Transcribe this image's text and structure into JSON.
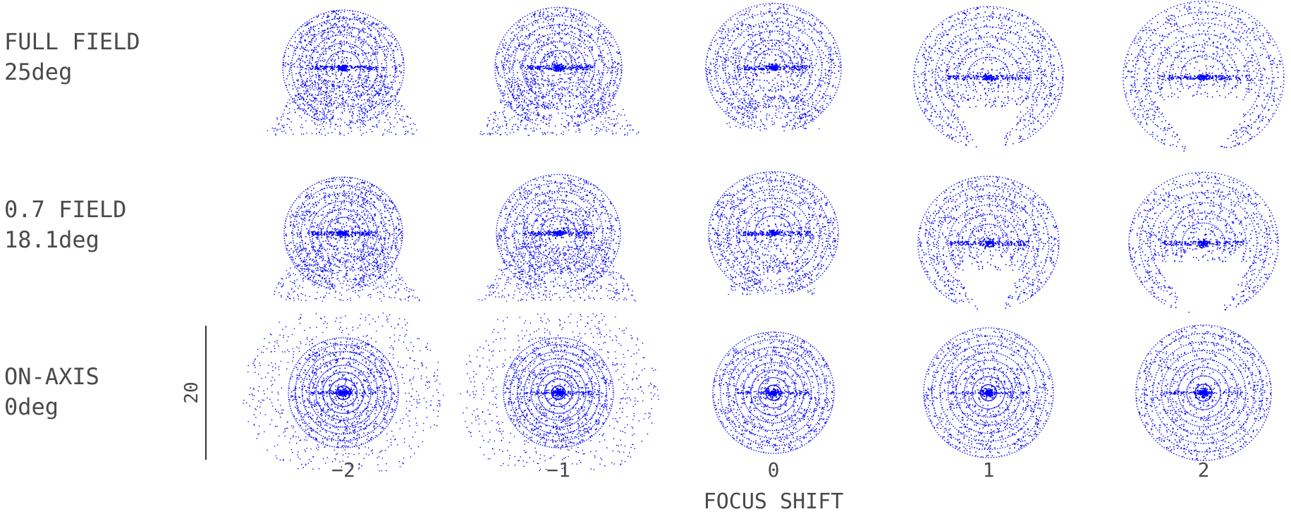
{
  "chart_data": {
    "type": "scatter",
    "title": "",
    "plot_kind": "through-focus spot diagram",
    "point_color": "#0000ff",
    "scale_bar": {
      "value": 20,
      "label": "20"
    },
    "x_axis": {
      "label": "FOCUS SHIFT",
      "categories": [
        -2,
        -1,
        0,
        1,
        2
      ],
      "tick_labels": [
        "−2",
        "−1",
        "0",
        "1",
        "2"
      ]
    },
    "rows": [
      {
        "label_line1": "FULL FIELD",
        "label_line2": "25deg",
        "field_deg": 25,
        "pattern": "full"
      },
      {
        "label_line1": "0.7 FIELD",
        "label_line2": "18.1deg",
        "field_deg": 18.1,
        "pattern": "partial"
      },
      {
        "label_line1": "ON-AXIS",
        "label_line2": "0deg",
        "field_deg": 0,
        "pattern": "axis"
      }
    ],
    "grid": false,
    "legend": "none"
  }
}
